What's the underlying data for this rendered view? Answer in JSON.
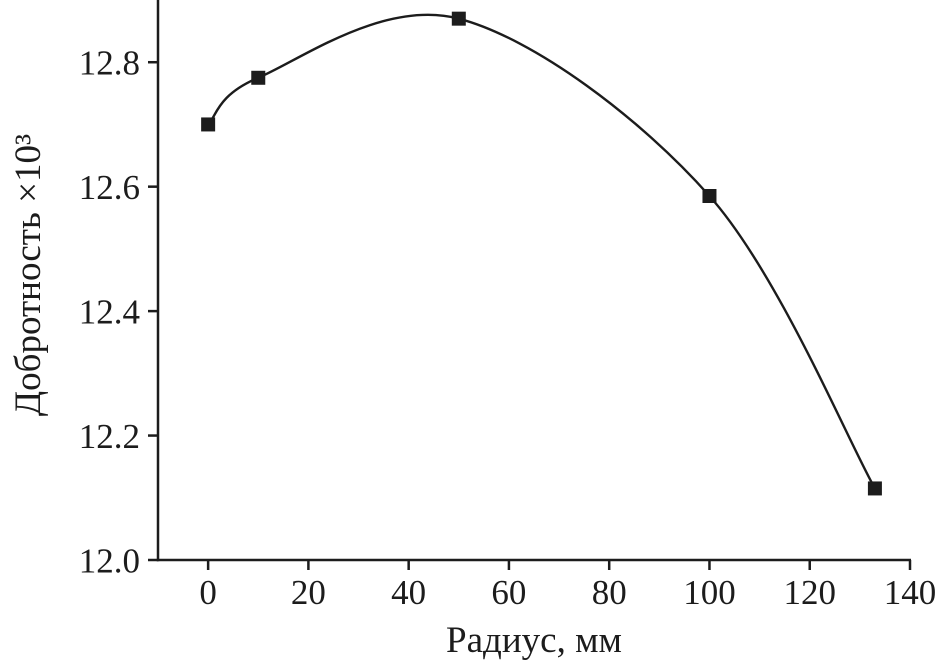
{
  "figure": {
    "background": "#ffffff"
  },
  "chart_data": {
    "type": "line",
    "x": [
      0,
      10,
      50,
      100,
      133
    ],
    "series": [
      {
        "name": "Добротность",
        "values": [
          12.7,
          12.775,
          12.87,
          12.585,
          12.115
        ]
      }
    ],
    "title": "",
    "xlabel": "Радиус, мм",
    "ylabel": "Добротность ×10³",
    "xlim": [
      -10,
      140
    ],
    "ylim": [
      12.0,
      12.9
    ],
    "xticks": {
      "values": [
        0,
        20,
        40,
        60,
        80,
        100,
        120,
        140
      ],
      "labels": [
        "0",
        "20",
        "40",
        "60",
        "80",
        "100",
        "120",
        "140"
      ]
    },
    "yticks": {
      "values": [
        12.0,
        12.2,
        12.4,
        12.6,
        12.8
      ],
      "labels": [
        "12.0",
        "12.2",
        "12.4",
        "12.6",
        "12.8"
      ]
    },
    "marker": "square",
    "marker_size": 14,
    "line_color": "#1c1c1c",
    "axis_color": "#1c1c1c",
    "smooth": true,
    "grid": false,
    "legend": "none"
  }
}
